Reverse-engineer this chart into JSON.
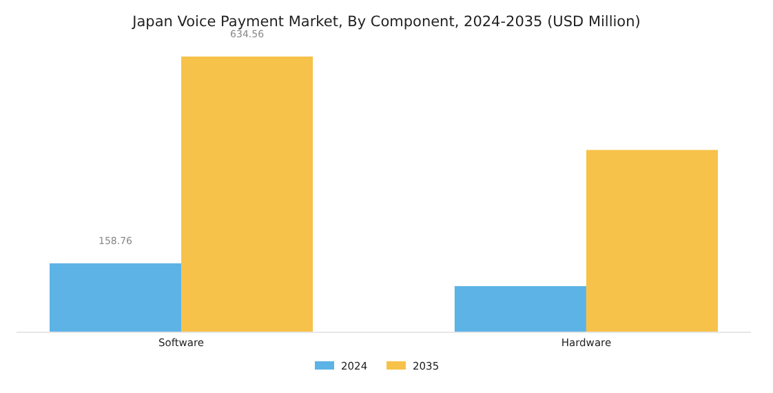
{
  "chart_data": {
    "type": "bar",
    "title": "Japan Voice Payment Market, By Component, 2024-2035 (USD Million)",
    "categories": [
      "Software",
      "Hardware"
    ],
    "series": [
      {
        "name": "2024",
        "color": "#5db3e6",
        "values": [
          158.76,
          106.3
        ],
        "value_labels": [
          "158.76",
          null
        ]
      },
      {
        "name": "2035",
        "color": "#f7c24a",
        "values": [
          634.56,
          419.6
        ],
        "value_labels": [
          "634.56",
          null
        ]
      }
    ],
    "legend": "bottom"
  }
}
